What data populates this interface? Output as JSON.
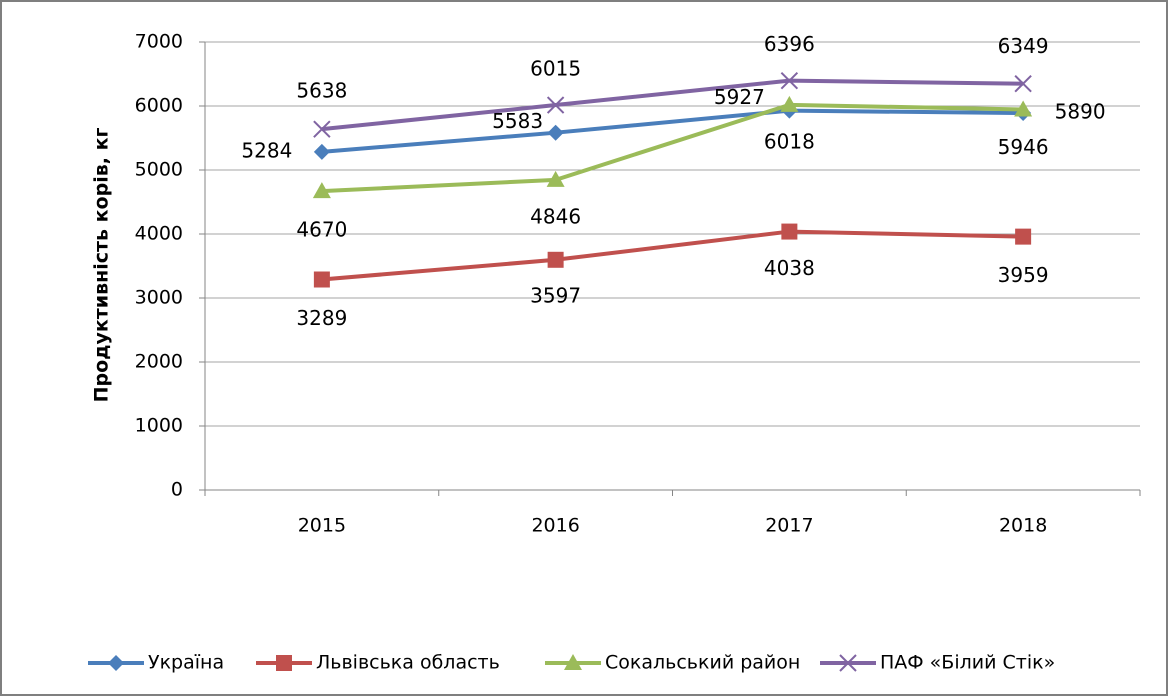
{
  "chart_data": {
    "type": "line",
    "y_label": "Продуктивність корів, кг",
    "categories": [
      "2015",
      "2016",
      "2017",
      "2018"
    ],
    "series": [
      {
        "name": "Україна",
        "color": "#4a7ebb",
        "marker": "diamond",
        "values": [
          5284,
          5583,
          5927,
          5890
        ]
      },
      {
        "name": "Львівська область",
        "color": "#c0504d",
        "marker": "square",
        "values": [
          3289,
          3597,
          4038,
          3959
        ]
      },
      {
        "name": "Сокальський район",
        "color": "#9bbb59",
        "marker": "triangle",
        "values": [
          4670,
          4846,
          6018,
          5946
        ]
      },
      {
        "name": "ПАФ «Білий Стік»",
        "color": "#8064a2",
        "marker": "x",
        "values": [
          5638,
          6015,
          6396,
          6349
        ]
      }
    ],
    "ylim": [
      0,
      7000
    ],
    "yticks": [
      0,
      1000,
      2000,
      3000,
      4000,
      5000,
      6000,
      7000
    ],
    "grid": true,
    "legend": "bottom"
  }
}
